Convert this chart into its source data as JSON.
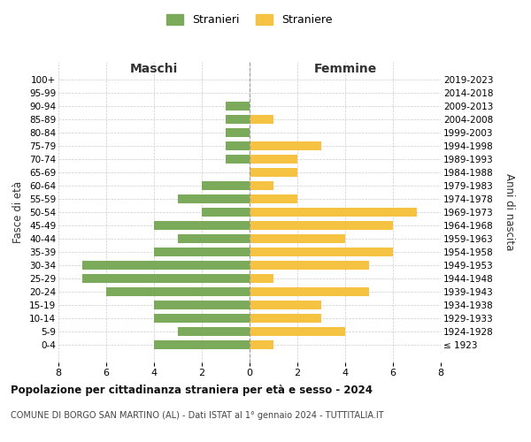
{
  "age_groups": [
    "100+",
    "95-99",
    "90-94",
    "85-89",
    "80-84",
    "75-79",
    "70-74",
    "65-69",
    "60-64",
    "55-59",
    "50-54",
    "45-49",
    "40-44",
    "35-39",
    "30-34",
    "25-29",
    "20-24",
    "15-19",
    "10-14",
    "5-9",
    "0-4"
  ],
  "birth_years": [
    "≤ 1923",
    "1924-1928",
    "1929-1933",
    "1934-1938",
    "1939-1943",
    "1944-1948",
    "1949-1953",
    "1954-1958",
    "1959-1963",
    "1964-1968",
    "1969-1973",
    "1974-1978",
    "1979-1983",
    "1984-1988",
    "1989-1993",
    "1994-1998",
    "1999-2003",
    "2004-2008",
    "2009-2013",
    "2014-2018",
    "2019-2023"
  ],
  "maschi": [
    0,
    0,
    1,
    1,
    1,
    1,
    1,
    0,
    2,
    3,
    2,
    4,
    3,
    4,
    7,
    7,
    6,
    4,
    4,
    3,
    4
  ],
  "femmine": [
    0,
    0,
    0,
    1,
    0,
    3,
    2,
    2,
    1,
    2,
    7,
    6,
    4,
    6,
    5,
    1,
    5,
    3,
    3,
    4,
    1
  ],
  "color_maschi": "#7aaa5a",
  "color_femmine": "#f5c242",
  "title": "Popolazione per cittadinanza straniera per età e sesso - 2024",
  "subtitle": "COMUNE DI BORGO SAN MARTINO (AL) - Dati ISTAT al 1° gennaio 2024 - TUTTITALIA.IT",
  "ylabel_left": "Fasce di età",
  "ylabel_right": "Anni di nascita",
  "xlabel_maschi": "Maschi",
  "xlabel_femmine": "Femmine",
  "legend_maschi": "Stranieri",
  "legend_femmine": "Straniere",
  "xlim": 8,
  "background_color": "#ffffff",
  "grid_color": "#cccccc"
}
